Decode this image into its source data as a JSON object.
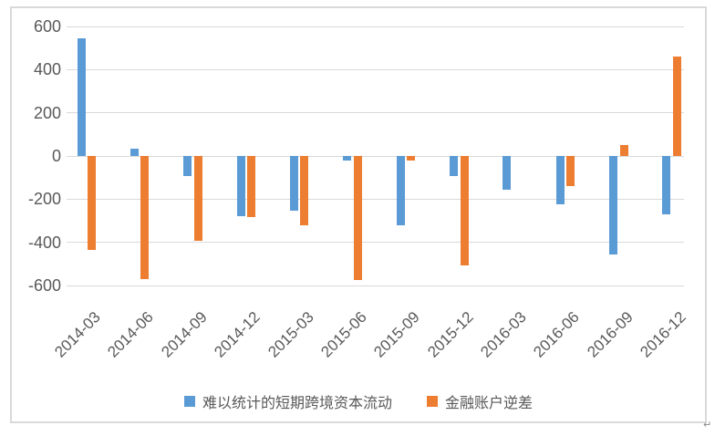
{
  "chart_data": {
    "type": "bar",
    "title": "",
    "categories": [
      "2014-03",
      "2014-06",
      "2014-09",
      "2014-12",
      "2015-03",
      "2015-06",
      "2015-09",
      "2015-12",
      "2016-03",
      "2016-06",
      "2016-09",
      "2016-12"
    ],
    "series": [
      {
        "name": "难以统计的短期跨境资本流动",
        "color": "#5B9BD5",
        "values": [
          545,
          35,
          -95,
          -280,
          -255,
          -20,
          -320,
          -95,
          -155,
          -225,
          -455,
          -270
        ]
      },
      {
        "name": "金融账户逆差",
        "color": "#ED7D31",
        "values": [
          -435,
          -570,
          -395,
          -285,
          -320,
          -575,
          -20,
          -505,
          0,
          -140,
          50,
          460
        ]
      }
    ],
    "xlabel": "",
    "ylabel": "",
    "ylim": [
      -600,
      600
    ],
    "y_ticks": [
      600,
      400,
      200,
      0,
      -200,
      -400,
      -600
    ],
    "grid": true,
    "legend_position": "bottom",
    "axis_label_color": "#595959",
    "gridline_color": "#D9D9D9",
    "background_color": "#FFFFFF",
    "border_color": "#D9D9D9"
  },
  "artifacts": {
    "paragraph_mark": "↵"
  }
}
